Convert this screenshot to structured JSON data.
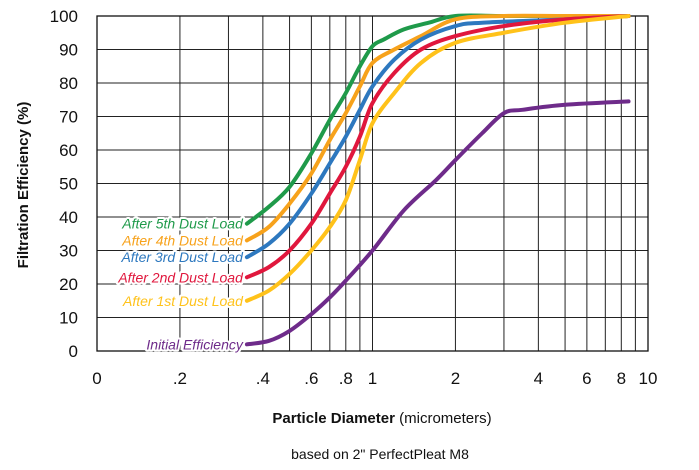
{
  "chart_data": {
    "type": "line",
    "xscale": "log",
    "xlim": [
      0.1,
      10
    ],
    "ylim": [
      0,
      100
    ],
    "grid": true,
    "ylabel": "Filtration Efficiency  (%)",
    "xlabel_bold": "Particle Diameter",
    "xlabel_unit": "(micrometers)",
    "note": "based on 2\" PerfectPleat M8",
    "x_tick_labels": [
      {
        "v": 0.1,
        "t": "0"
      },
      {
        "v": 0.2,
        "t": ".2"
      },
      {
        "v": 0.4,
        "t": ".4"
      },
      {
        "v": 0.6,
        "t": ".6"
      },
      {
        "v": 0.8,
        "t": ".8"
      },
      {
        "v": 1,
        "t": "1"
      },
      {
        "v": 2,
        "t": "2"
      },
      {
        "v": 4,
        "t": "4"
      },
      {
        "v": 6,
        "t": "6"
      },
      {
        "v": 8,
        "t": "8"
      },
      {
        "v": 10,
        "t": "10"
      }
    ],
    "y_tick_labels": [
      "0",
      "10",
      "20",
      "30",
      "40",
      "50",
      "60",
      "70",
      "80",
      "90",
      "100"
    ],
    "series": [
      {
        "name": "After 5th Dust Load",
        "color": "#1f9a4a",
        "points": [
          [
            0.35,
            38
          ],
          [
            0.42,
            43
          ],
          [
            0.5,
            49
          ],
          [
            0.6,
            59
          ],
          [
            0.7,
            69
          ],
          [
            0.8,
            77
          ],
          [
            0.9,
            85
          ],
          [
            1.0,
            91
          ],
          [
            1.1,
            93
          ],
          [
            1.3,
            96
          ],
          [
            1.6,
            98
          ],
          [
            2,
            100
          ],
          [
            3,
            100
          ],
          [
            5,
            100
          ],
          [
            8.5,
            100
          ]
        ]
      },
      {
        "name": "After 4th Dust Load",
        "color": "#f7a21b",
        "points": [
          [
            0.35,
            33
          ],
          [
            0.42,
            37
          ],
          [
            0.5,
            44
          ],
          [
            0.6,
            53
          ],
          [
            0.7,
            63
          ],
          [
            0.8,
            71
          ],
          [
            0.9,
            79
          ],
          [
            1.0,
            86
          ],
          [
            1.2,
            90
          ],
          [
            1.5,
            94
          ],
          [
            2,
            99
          ],
          [
            3,
            100
          ],
          [
            5,
            100
          ],
          [
            8.5,
            100
          ]
        ]
      },
      {
        "name": "After 3rd Dust Load",
        "color": "#2d78bf",
        "points": [
          [
            0.35,
            28
          ],
          [
            0.42,
            32
          ],
          [
            0.5,
            38
          ],
          [
            0.6,
            47
          ],
          [
            0.7,
            56
          ],
          [
            0.8,
            64
          ],
          [
            0.9,
            72
          ],
          [
            1.0,
            79
          ],
          [
            1.2,
            87
          ],
          [
            1.5,
            93
          ],
          [
            2,
            97
          ],
          [
            2.5,
            98
          ],
          [
            5,
            99
          ],
          [
            8.5,
            100
          ]
        ]
      },
      {
        "name": "After 2nd Dust Load",
        "color": "#e0173d",
        "points": [
          [
            0.35,
            22
          ],
          [
            0.42,
            25
          ],
          [
            0.5,
            30
          ],
          [
            0.6,
            38
          ],
          [
            0.7,
            47
          ],
          [
            0.8,
            55
          ],
          [
            0.9,
            64
          ],
          [
            1.0,
            74
          ],
          [
            1.2,
            83
          ],
          [
            1.5,
            90
          ],
          [
            2,
            94
          ],
          [
            3,
            97
          ],
          [
            5,
            99
          ],
          [
            8.5,
            100
          ]
        ]
      },
      {
        "name": "After 1st Dust Load",
        "color": "#ffc21a",
        "points": [
          [
            0.35,
            15
          ],
          [
            0.42,
            18
          ],
          [
            0.5,
            23
          ],
          [
            0.6,
            30
          ],
          [
            0.7,
            37
          ],
          [
            0.8,
            45
          ],
          [
            0.9,
            57
          ],
          [
            1.0,
            68
          ],
          [
            1.2,
            77
          ],
          [
            1.5,
            86
          ],
          [
            2,
            92
          ],
          [
            3,
            95
          ],
          [
            5,
            98
          ],
          [
            8.5,
            100
          ]
        ]
      },
      {
        "name": "Initial Efficiency",
        "color": "#6e2b8a",
        "points": [
          [
            0.35,
            2
          ],
          [
            0.42,
            3
          ],
          [
            0.5,
            6
          ],
          [
            0.6,
            11
          ],
          [
            0.7,
            16
          ],
          [
            0.8,
            21
          ],
          [
            1.0,
            30
          ],
          [
            1.3,
            42
          ],
          [
            1.7,
            51
          ],
          [
            2,
            57
          ],
          [
            2.5,
            65
          ],
          [
            3,
            71
          ],
          [
            3.5,
            72
          ],
          [
            5,
            73.5
          ],
          [
            8.5,
            74.5
          ]
        ]
      }
    ]
  }
}
